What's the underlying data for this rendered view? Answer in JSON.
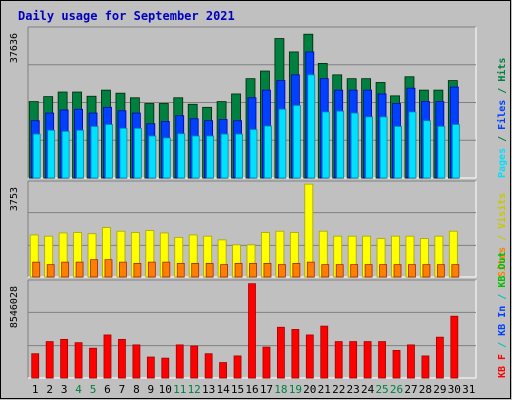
{
  "chart_data": [
    {
      "type": "bar",
      "title": "Daily usage for September 2021",
      "ylabel": "Pages / Files / Hits",
      "ytick_label": "37636",
      "ylim": [
        0,
        39000
      ],
      "grid": true,
      "categories": [
        "1",
        "2",
        "3",
        "4",
        "5",
        "6",
        "7",
        "8",
        "9",
        "10",
        "11",
        "12",
        "13",
        "14",
        "15",
        "16",
        "17",
        "18",
        "19",
        "20",
        "21",
        "22",
        "23",
        "24",
        "25",
        "26",
        "27",
        "28",
        "29",
        "30",
        "31"
      ],
      "weekend_days": [
        "4",
        "5",
        "11",
        "12",
        "18",
        "19",
        "25",
        "26"
      ],
      "series": [
        {
          "name": "Hits",
          "color": "#008040",
          "values": [
            20000,
            21300,
            22500,
            22500,
            21400,
            23000,
            22200,
            21000,
            19500,
            19500,
            21000,
            19300,
            18500,
            20000,
            22000,
            26000,
            28000,
            36500,
            33000,
            37636,
            30000,
            27000,
            26000,
            26000,
            25000,
            21500,
            26500,
            23000,
            23000,
            25500,
            null
          ]
        },
        {
          "name": "Files",
          "color": "#0040ff",
          "values": [
            15000,
            17000,
            17800,
            18000,
            17000,
            18500,
            17600,
            17000,
            14200,
            14800,
            16300,
            15500,
            15000,
            15300,
            15000,
            21000,
            23000,
            25500,
            27000,
            33000,
            26000,
            23000,
            23000,
            23000,
            22000,
            19500,
            23500,
            20000,
            20000,
            23800,
            null
          ]
        },
        {
          "name": "Pages",
          "color": "#00e0ff",
          "values": [
            11500,
            12500,
            12200,
            12500,
            13500,
            14000,
            13000,
            13000,
            11000,
            10500,
            11600,
            11000,
            11000,
            11500,
            11500,
            12700,
            13600,
            18000,
            19000,
            27000,
            17300,
            17500,
            17000,
            16000,
            16000,
            13500,
            17300,
            15000,
            13500,
            14000,
            null
          ]
        }
      ]
    },
    {
      "type": "bar",
      "ylabel": "Visits / Sites",
      "ytick_label": "3753",
      "ylim": [
        0,
        3800
      ],
      "grid": true,
      "categories": [
        "1",
        "2",
        "3",
        "4",
        "5",
        "6",
        "7",
        "8",
        "9",
        "10",
        "11",
        "12",
        "13",
        "14",
        "15",
        "16",
        "17",
        "18",
        "19",
        "20",
        "21",
        "22",
        "23",
        "24",
        "25",
        "26",
        "27",
        "28",
        "29",
        "30",
        "31"
      ],
      "series": [
        {
          "name": "Visits",
          "color": "#ffff00",
          "values": [
            1700,
            1650,
            1780,
            1800,
            1750,
            2000,
            1850,
            1800,
            1880,
            1780,
            1600,
            1700,
            1650,
            1500,
            1300,
            1300,
            1800,
            1850,
            1800,
            3753,
            1850,
            1650,
            1650,
            1650,
            1550,
            1650,
            1650,
            1550,
            1650,
            1850,
            null
          ]
        },
        {
          "name": "Sites",
          "color": "#ff8000",
          "values": [
            600,
            500,
            600,
            600,
            700,
            700,
            600,
            550,
            600,
            600,
            550,
            550,
            550,
            500,
            550,
            550,
            550,
            500,
            550,
            600,
            500,
            500,
            500,
            500,
            500,
            500,
            500,
            500,
            500,
            500,
            null
          ]
        }
      ]
    },
    {
      "type": "bar",
      "ylabel": "KB F / KB In / KB Out",
      "ytick_label": "8546028",
      "ylim": [
        0,
        8700000
      ],
      "grid": true,
      "categories": [
        "1",
        "2",
        "3",
        "4",
        "5",
        "6",
        "7",
        "8",
        "9",
        "10",
        "11",
        "12",
        "13",
        "14",
        "15",
        "16",
        "17",
        "18",
        "19",
        "20",
        "21",
        "22",
        "23",
        "24",
        "25",
        "26",
        "27",
        "28",
        "29",
        "30",
        "31"
      ],
      "series": [
        {
          "name": "KB F",
          "color": "#ff0000",
          "values": [
            2200000,
            3300000,
            3500000,
            3200000,
            2700000,
            3900000,
            3500000,
            3000000,
            1900000,
            1800000,
            3000000,
            2900000,
            2200000,
            1400000,
            2000000,
            8546028,
            2800000,
            4600000,
            4400000,
            3900000,
            4700000,
            3300000,
            3300000,
            3300000,
            3300000,
            2500000,
            3000000,
            2000000,
            3700000,
            5600000,
            null
          ]
        }
      ]
    }
  ],
  "legend_labels": {
    "top": [
      {
        "text": "Pages",
        "color": "#00e0ff"
      },
      {
        "text": " / ",
        "color": "#008040"
      },
      {
        "text": "Files",
        "color": "#0040ff"
      },
      {
        "text": " / ",
        "color": "#008040"
      },
      {
        "text": "Hits",
        "color": "#008040"
      }
    ],
    "middle": [
      {
        "text": "Sites",
        "color": "#ff8000"
      },
      {
        "text": " / ",
        "color": "#c8c800"
      },
      {
        "text": "Visits",
        "color": "#c8c800"
      }
    ],
    "bottom": [
      {
        "text": "KB F",
        "color": "#ff0000"
      },
      {
        "text": " / ",
        "color": "#00c0c0"
      },
      {
        "text": "KB In",
        "color": "#0040ff"
      },
      {
        "text": " / ",
        "color": "#00c0c0"
      },
      {
        "text": "KB Out",
        "color": "#00c000"
      }
    ]
  },
  "colors": {
    "background": "#c0c0c0",
    "title": "#0000c0",
    "weekday_label": "#000000",
    "weekend_label": "#008040"
  }
}
